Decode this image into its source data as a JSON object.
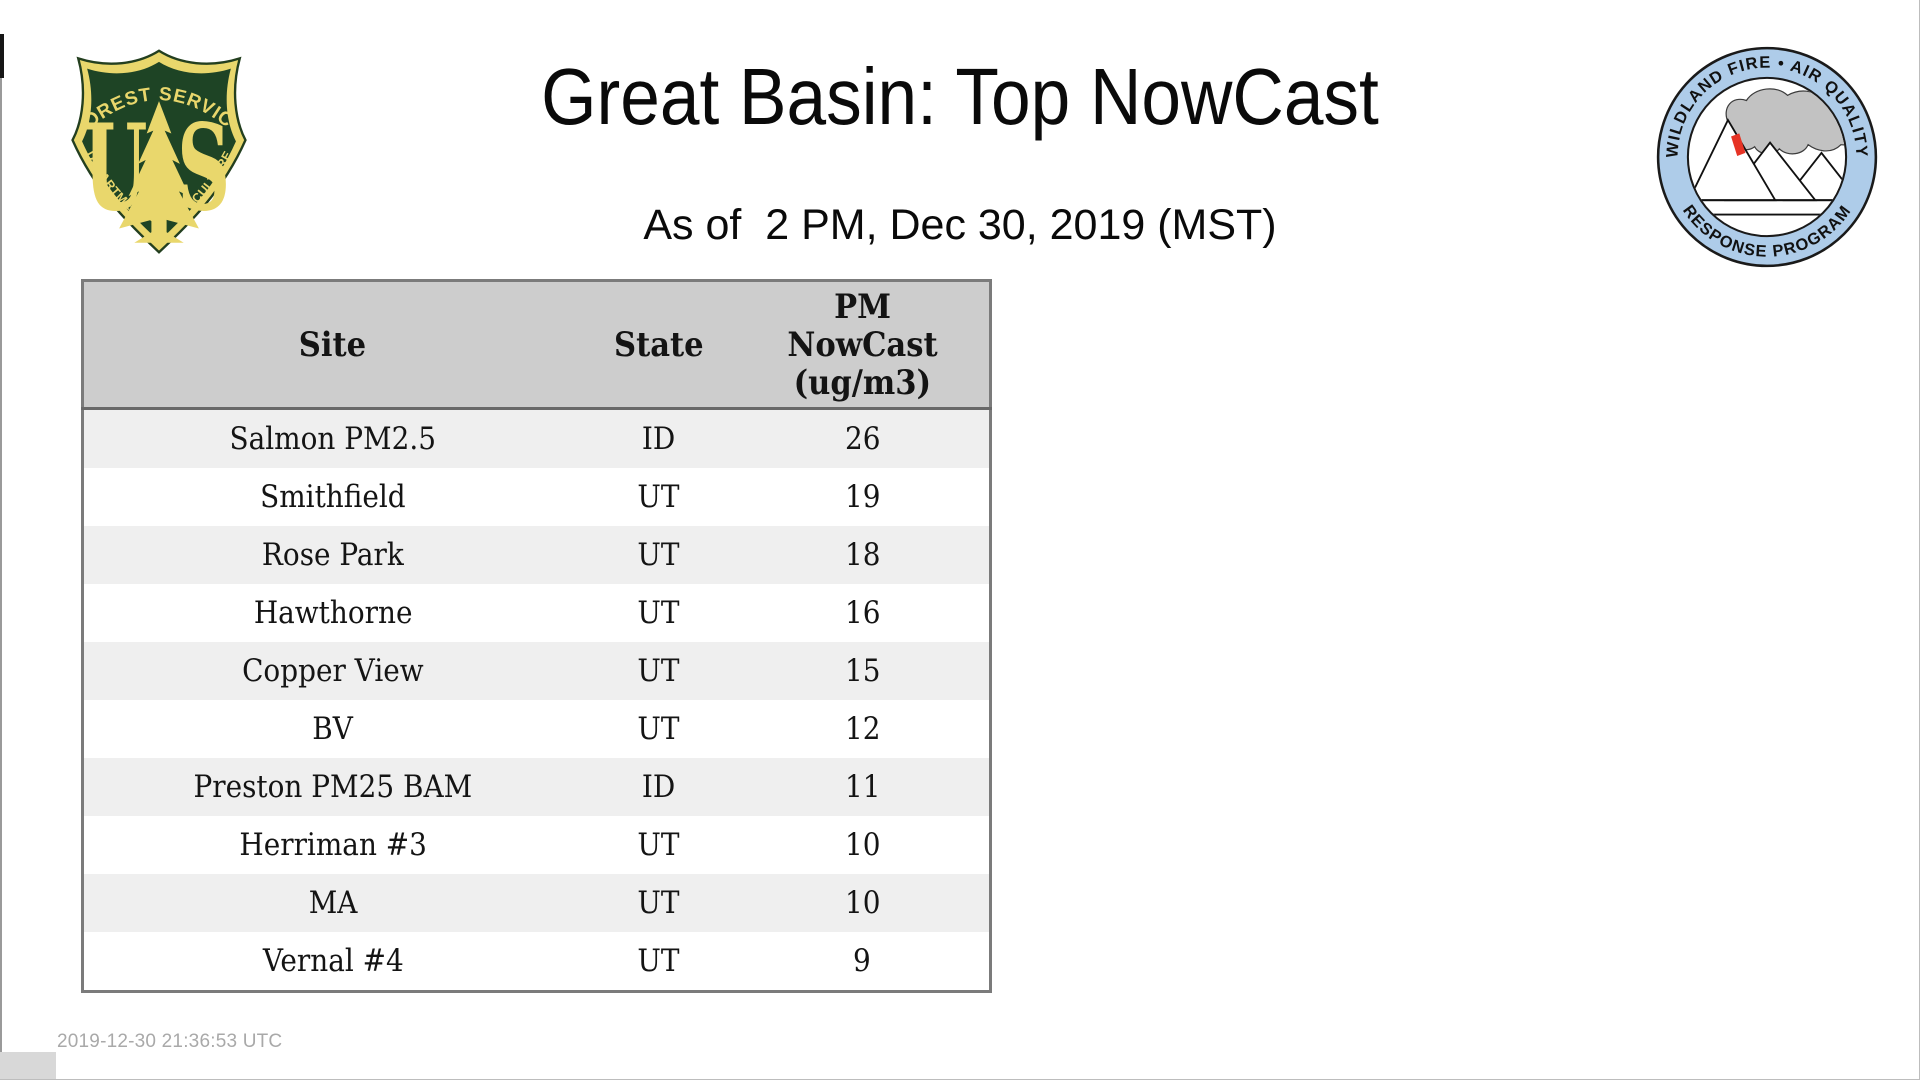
{
  "page": {
    "title": "Great Basin: Top NowCast",
    "subtitle": "As of  2 PM, Dec 30, 2019 (MST)",
    "footer_timestamp": "2019-12-30 21:36:53 UTC"
  },
  "logos": {
    "usfs": {
      "top_text": "FOREST SERVICE",
      "letter_u": "U",
      "letter_s": "S",
      "bottom_text": "DEPARTMENT OF AGRICULTURE",
      "shield_green": "#1e4425",
      "gold": "#e9d76c"
    },
    "wfaqrp": {
      "top_text": "WILDLAND FIRE • AIR QUALITY",
      "bottom_text": "RESPONSE PROGRAM",
      "ring_blue": "#aecce9",
      "smoke_gray": "#c2c2c2",
      "flame_red": "#e63325"
    }
  },
  "table": {
    "columns": [
      "Site",
      "State",
      "PM NowCast (ug/m3)"
    ],
    "pm_header_lines": [
      "PM",
      "NowCast",
      "(ug/m3)"
    ],
    "rows": [
      {
        "site": "Salmon PM2.5",
        "state": "ID",
        "value": "26"
      },
      {
        "site": "Smithfield",
        "state": "UT",
        "value": "19"
      },
      {
        "site": "Rose Park",
        "state": "UT",
        "value": "18"
      },
      {
        "site": "Hawthorne",
        "state": "UT",
        "value": "16"
      },
      {
        "site": "Copper View",
        "state": "UT",
        "value": "15"
      },
      {
        "site": "BV",
        "state": "UT",
        "value": "12"
      },
      {
        "site": "Preston PM25 BAM",
        "state": "ID",
        "value": "11"
      },
      {
        "site": "Herriman #3",
        "state": "UT",
        "value": "10"
      },
      {
        "site": "MA",
        "state": "UT",
        "value": "10"
      },
      {
        "site": "Vernal #4",
        "state": "UT",
        "value": "9"
      }
    ],
    "header_bg": "#cdcdcd",
    "alt_row_bg": "#efefef",
    "border_gray": "#7b7b7b"
  },
  "chart_data": {
    "type": "table",
    "title": "Great Basin: Top NowCast",
    "subtitle": "As of  2 PM, Dec 30, 2019 (MST)",
    "columns": [
      "Site",
      "State",
      "PM NowCast (ug/m3)"
    ],
    "rows": [
      [
        "Salmon PM2.5",
        "ID",
        26
      ],
      [
        "Smithfield",
        "UT",
        19
      ],
      [
        "Rose Park",
        "UT",
        18
      ],
      [
        "Hawthorne",
        "UT",
        16
      ],
      [
        "Copper View",
        "UT",
        15
      ],
      [
        "BV",
        "UT",
        12
      ],
      [
        "Preston PM25 BAM",
        "ID",
        11
      ],
      [
        "Herriman #3",
        "UT",
        10
      ],
      [
        "MA",
        "UT",
        10
      ],
      [
        "Vernal #4",
        "UT",
        9
      ]
    ],
    "footer": "2019-12-30 21:36:53 UTC"
  }
}
